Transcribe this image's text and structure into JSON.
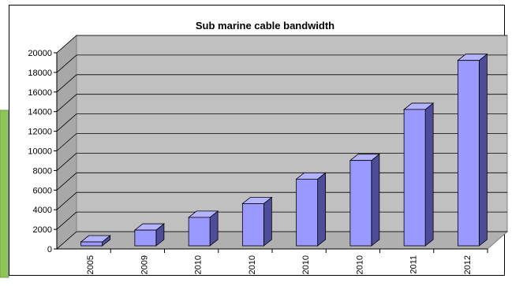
{
  "chart_data": {
    "type": "bar",
    "title": "Sub marine cable  bandwidth",
    "xlabel": "",
    "ylabel": "",
    "categories": [
      "2005",
      "2009",
      "2010",
      "2010",
      "2010",
      "2010",
      "2011",
      "2012"
    ],
    "values": [
      400,
      1600,
      2900,
      4300,
      6800,
      8700,
      13900,
      18900
    ],
    "ylim": [
      0,
      20000
    ],
    "yticks": [
      "0",
      "2000",
      "4000",
      "6000",
      "8000",
      "10000",
      "12000",
      "14000",
      "16000",
      "18000",
      "20000"
    ],
    "style": "3d-column",
    "grid": true,
    "legend": "none",
    "colors": {
      "bar_front": "#9999ff",
      "bar_top": "#b3b3ff",
      "bar_side": "#4d4d99",
      "plot_back": "#c0c0c0",
      "plot_floor": "#b0b0b0",
      "plot_side": "#a8a8a8",
      "grid": "#000000",
      "left_strip": "#8fc45a"
    }
  }
}
